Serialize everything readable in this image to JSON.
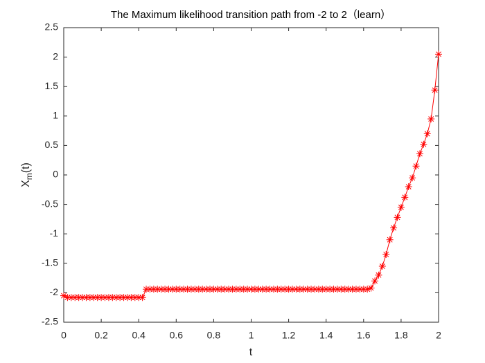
{
  "chart_data": {
    "type": "line",
    "title": "The Maximum likelihood transition path from -2 to 2（learn）",
    "xlabel": "t",
    "ylabel": [
      "X",
      "m",
      "(t)"
    ],
    "x": [
      0,
      0.02,
      0.04,
      0.06,
      0.08,
      0.1,
      0.12,
      0.14,
      0.16,
      0.18,
      0.2,
      0.22,
      0.24,
      0.26,
      0.28,
      0.3,
      0.32,
      0.34,
      0.36,
      0.38,
      0.4,
      0.42,
      0.44,
      0.46,
      0.48,
      0.5,
      0.52,
      0.54,
      0.56,
      0.58,
      0.6,
      0.62,
      0.64,
      0.66,
      0.68,
      0.7,
      0.72,
      0.74,
      0.76,
      0.78,
      0.8,
      0.82,
      0.84,
      0.86,
      0.88,
      0.9,
      0.92,
      0.94,
      0.96,
      0.98,
      1,
      1.02,
      1.04,
      1.06,
      1.08,
      1.1,
      1.12,
      1.14,
      1.16,
      1.18,
      1.2,
      1.22,
      1.24,
      1.26,
      1.28,
      1.3,
      1.32,
      1.34,
      1.36,
      1.38,
      1.4,
      1.42,
      1.44,
      1.46,
      1.48,
      1.5,
      1.52,
      1.54,
      1.56,
      1.58,
      1.6,
      1.62,
      1.64,
      1.66,
      1.68,
      1.7,
      1.72,
      1.74,
      1.76,
      1.78,
      1.8,
      1.82,
      1.84,
      1.86,
      1.88,
      1.9,
      1.92,
      1.94,
      1.96,
      1.98,
      2
    ],
    "series": [
      {
        "color": "#ff0000",
        "marker": "*",
        "values": [
          -2.05,
          -2.08,
          -2.08,
          -2.08,
          -2.08,
          -2.08,
          -2.08,
          -2.08,
          -2.08,
          -2.08,
          -2.08,
          -2.08,
          -2.08,
          -2.08,
          -2.08,
          -2.08,
          -2.08,
          -2.08,
          -2.08,
          -2.08,
          -2.08,
          -2.08,
          -1.94,
          -1.94,
          -1.94,
          -1.94,
          -1.94,
          -1.94,
          -1.94,
          -1.94,
          -1.94,
          -1.94,
          -1.94,
          -1.94,
          -1.94,
          -1.94,
          -1.94,
          -1.94,
          -1.94,
          -1.94,
          -1.94,
          -1.94,
          -1.94,
          -1.94,
          -1.94,
          -1.94,
          -1.94,
          -1.94,
          -1.94,
          -1.94,
          -1.94,
          -1.94,
          -1.94,
          -1.94,
          -1.94,
          -1.94,
          -1.94,
          -1.94,
          -1.94,
          -1.94,
          -1.94,
          -1.94,
          -1.94,
          -1.94,
          -1.94,
          -1.94,
          -1.94,
          -1.94,
          -1.94,
          -1.94,
          -1.94,
          -1.94,
          -1.94,
          -1.94,
          -1.94,
          -1.94,
          -1.94,
          -1.94,
          -1.94,
          -1.94,
          -1.94,
          -1.94,
          -1.92,
          -1.8,
          -1.7,
          -1.55,
          -1.35,
          -1.1,
          -0.9,
          -0.72,
          -0.55,
          -0.38,
          -0.2,
          -0.05,
          0.15,
          0.36,
          0.52,
          0.7,
          0.95,
          1.44,
          2.05
        ]
      }
    ],
    "xlim": [
      0,
      2
    ],
    "xticks": [
      0,
      0.2,
      0.4,
      0.6,
      0.8,
      1,
      1.2,
      1.4,
      1.6,
      1.8,
      2
    ],
    "ylim": [
      -2.5,
      2.5
    ],
    "yticks": [
      -2.5,
      -2,
      -1.5,
      -1,
      -0.5,
      0,
      0.5,
      1,
      1.5,
      2,
      2.5
    ],
    "grid": false
  }
}
